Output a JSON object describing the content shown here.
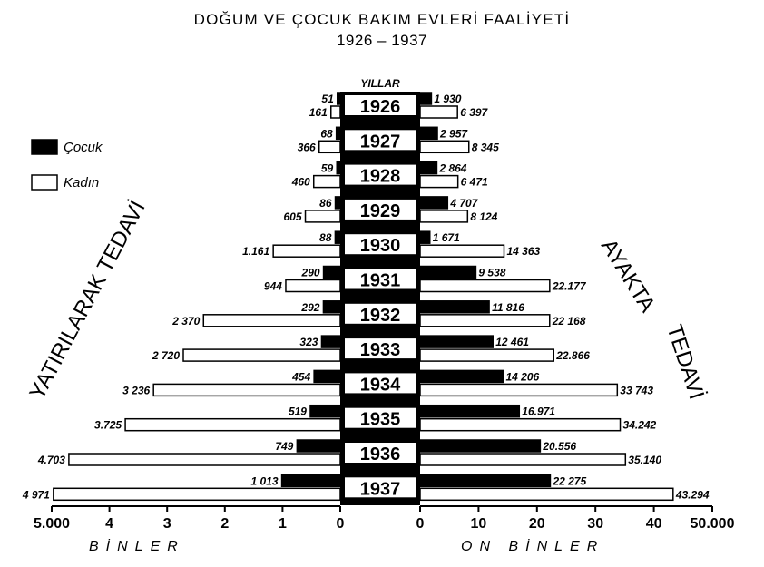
{
  "title": "DOĞUM VE ÇOCUK BAKIM EVLERİ FAALİYETİ",
  "subtitle": "1926 – 1937",
  "years_header": "YILLAR",
  "left_side_label": "YATIRILARAK TEDAVİ",
  "right_side_label_1": "AYAKTA",
  "right_side_label_2": "TEDAVİ",
  "left_units": "BİNLER",
  "right_units": "ON BİNLER",
  "legend": [
    {
      "label": "Çocuk",
      "fill": "#000000"
    },
    {
      "label": "Kadın",
      "fill": "#ffffff"
    }
  ],
  "left_axis_ticks": [
    "5.000",
    "4",
    "3",
    "2",
    "1",
    "0"
  ],
  "right_axis_ticks": [
    "0",
    "10",
    "20",
    "30",
    "40",
    "50.000"
  ],
  "chart_data": {
    "type": "bar",
    "title": "DOĞUM VE ÇOCUK BAKIM EVLERİ FAALİYETİ",
    "subtitle": "1926 – 1937",
    "categories": [
      "1926",
      "1927",
      "1928",
      "1929",
      "1930",
      "1931",
      "1932",
      "1933",
      "1934",
      "1935",
      "1936",
      "1937"
    ],
    "left_panel": {
      "label": "YATIRILARAK TEDAVİ",
      "units": "BİNLER",
      "xlim": [
        0,
        5000
      ],
      "series": [
        {
          "name": "Çocuk",
          "fill": "#000000",
          "values": [
            51,
            68,
            59,
            86,
            88,
            290,
            292,
            323,
            454,
            519,
            749,
            1013
          ],
          "labels": [
            "51",
            "68",
            "59",
            "86",
            "88",
            "290",
            "292",
            "323",
            "454",
            "519",
            "749",
            "1 013"
          ]
        },
        {
          "name": "Kadın",
          "fill": "#ffffff",
          "values": [
            161,
            366,
            460,
            605,
            1161,
            944,
            2370,
            2720,
            3236,
            3725,
            4703,
            4971
          ],
          "labels": [
            "161",
            "366",
            "460",
            "605",
            "1.161",
            "944",
            "2 370",
            "2 720",
            "3 236",
            "3.725",
            "4.703",
            "4 971"
          ]
        }
      ]
    },
    "right_panel": {
      "label": "AYAKTA TEDAVİ",
      "units": "ON BİNLER",
      "xlim": [
        0,
        50000
      ],
      "series": [
        {
          "name": "Çocuk",
          "fill": "#000000",
          "values": [
            1930,
            2957,
            2864,
            4707,
            1671,
            9538,
            11816,
            12461,
            14206,
            16971,
            20556,
            22275
          ],
          "labels": [
            "1 930",
            "2 957",
            "2 864",
            "4 707",
            "1 671",
            "9 538",
            "11 816",
            "12 461",
            "14 206",
            "16.971",
            "20.556",
            "22 275"
          ]
        },
        {
          "name": "Kadın",
          "fill": "#ffffff",
          "values": [
            6397,
            8345,
            6471,
            8124,
            14363,
            22177,
            22168,
            22866,
            33743,
            34242,
            35140,
            43294
          ],
          "labels": [
            "6 397",
            "8 345",
            "6 471",
            "8 124",
            "14 363",
            "22.177",
            "22 168",
            "22.866",
            "33 743",
            "34.242",
            "35.140",
            "43.294"
          ]
        }
      ]
    },
    "legend_position": "left"
  }
}
